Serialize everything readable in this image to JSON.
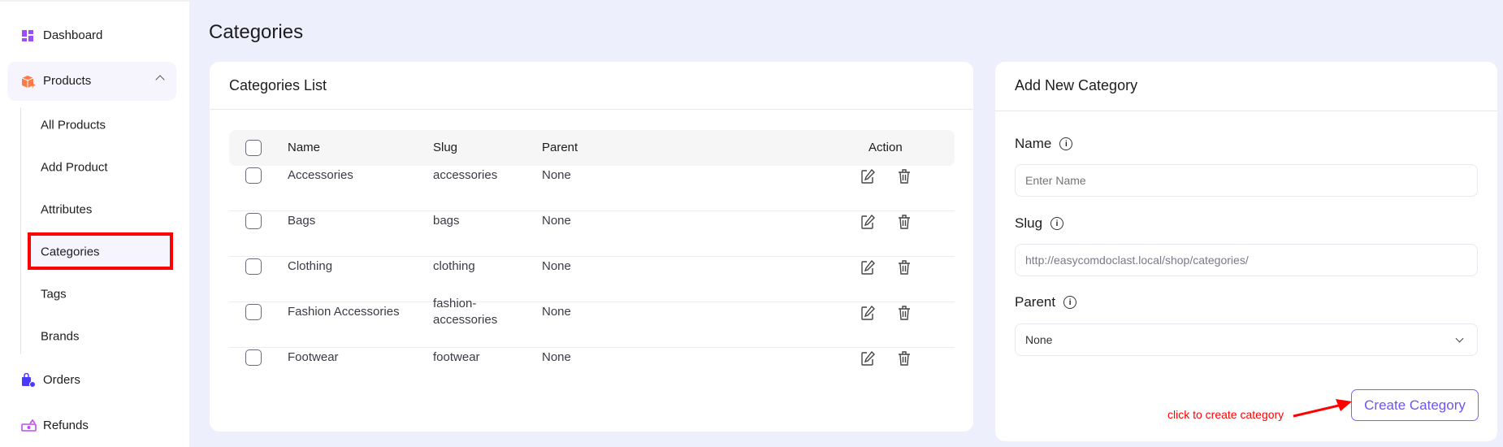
{
  "sidebar": {
    "dashboard": "Dashboard",
    "products": "Products",
    "sub": [
      "All Products",
      "Add Product",
      "Attributes",
      "Categories",
      "Tags",
      "Brands"
    ],
    "orders": "Orders",
    "refunds": "Refunds",
    "selected": "Categories"
  },
  "page_title": "Categories",
  "list": {
    "title": "Categories List",
    "headers": {
      "name": "Name",
      "slug": "Slug",
      "parent": "Parent",
      "action": "Action"
    },
    "rows": [
      {
        "name": "Accessories",
        "slug": "accessories",
        "parent": "None"
      },
      {
        "name": "Bags",
        "slug": "bags",
        "parent": "None"
      },
      {
        "name": "Clothing",
        "slug": "clothing",
        "parent": "None"
      },
      {
        "name": "Fashion Accessories",
        "slug": "fashion-accessories",
        "parent": "None"
      },
      {
        "name": "Footwear",
        "slug": "footwear",
        "parent": "None"
      }
    ]
  },
  "form": {
    "title": "Add New Category",
    "name_label": "Name",
    "name_placeholder": "Enter Name",
    "slug_label": "Slug",
    "slug_value": "http://easycomdoclast.local/shop/categories/",
    "parent_label": "Parent",
    "parent_value": "None",
    "submit": "Create Category"
  },
  "annotation": "click to create category",
  "colors": {
    "accent": "#7b61ff",
    "highlight": "#ff0000",
    "background": "#eeeffd"
  }
}
